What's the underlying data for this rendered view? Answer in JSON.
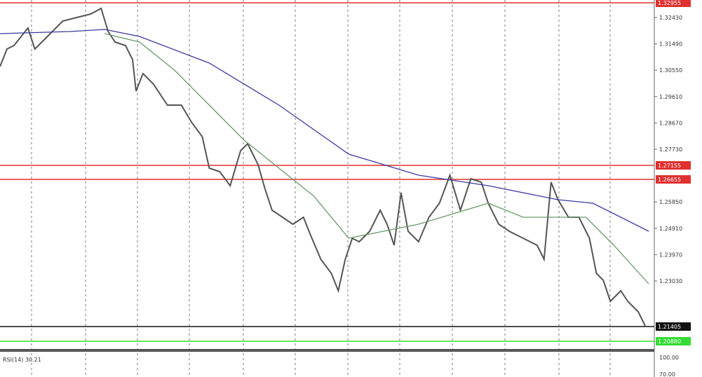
{
  "chart_data": {
    "type": "line",
    "xlabel": "",
    "ylabel": "",
    "ylim": [
      1.20605,
      1.33055
    ],
    "grid": true,
    "x": [
      0,
      2,
      4,
      8,
      10,
      14,
      18,
      22,
      26,
      29,
      31,
      33,
      36,
      38,
      39,
      41,
      44,
      48,
      52,
      55,
      58,
      60,
      63,
      66,
      69,
      71,
      74,
      76,
      78,
      81,
      84,
      87,
      89,
      92,
      95,
      97,
      99,
      101,
      103,
      106,
      109,
      111,
      113,
      115,
      117,
      120,
      123,
      126,
      129,
      132,
      135,
      138,
      140,
      143,
      146,
      150,
      154,
      156,
      158,
      160,
      163,
      166,
      169,
      171,
      173,
      175,
      178,
      180,
      183,
      185
    ],
    "series": [
      {
        "role": "price",
        "color": "#555555",
        "values": [
          1.3068,
          1.31305,
          1.3143,
          1.32055,
          1.31305,
          1.31805,
          1.32305,
          1.3243,
          1.32555,
          1.32755,
          1.3193,
          1.31555,
          1.3143,
          1.3093,
          1.29805,
          1.3043,
          1.30055,
          1.29305,
          1.29305,
          1.2868,
          1.2818,
          1.27055,
          1.2693,
          1.2643,
          1.2768,
          1.2793,
          1.2718,
          1.26305,
          1.25555,
          1.25305,
          1.25055,
          1.25305,
          1.2468,
          1.23805,
          1.23305,
          1.2268,
          1.23805,
          1.24555,
          1.2443,
          1.24805,
          1.25555,
          1.25055,
          1.24305,
          1.2618,
          1.24805,
          1.2443,
          1.25305,
          1.25805,
          1.26805,
          1.25555,
          1.2668,
          1.26555,
          1.25805,
          1.25055,
          1.24805,
          1.24555,
          1.24305,
          1.23805,
          1.26555,
          1.2593,
          1.25305,
          1.25305,
          1.24555,
          1.23305,
          1.23055,
          1.22305,
          1.2268,
          1.22305,
          1.2193,
          1.2143
        ]
      },
      {
        "role": "slow-ma",
        "color": "#3a3aa0",
        "x": [
          0,
          20,
          30,
          40,
          60,
          80,
          100,
          120,
          140,
          160,
          170,
          186
        ],
        "values": [
          1.31855,
          1.3193,
          1.32005,
          1.31755,
          1.30805,
          1.29305,
          1.27555,
          1.26805,
          1.2643,
          1.2593,
          1.25805,
          1.24805
        ]
      },
      {
        "role": "fast-ma",
        "color": "#6a9a6a",
        "x": [
          30,
          40,
          50,
          60,
          70,
          80,
          90,
          100,
          110,
          120,
          130,
          140,
          150,
          160,
          168,
          176,
          186
        ],
        "values": [
          1.31855,
          1.31555,
          1.30555,
          1.29305,
          1.28055,
          1.27055,
          1.26055,
          1.24555,
          1.24805,
          1.25055,
          1.2543,
          1.25805,
          1.25305,
          1.25305,
          1.25305,
          1.24305,
          1.2293
        ]
      }
    ],
    "y_ticks": [
      "1.32430",
      "1.31490",
      "1.30550",
      "1.29610",
      "1.28670",
      "1.27730",
      "1.25850",
      "1.24910",
      "1.23970",
      "1.23030"
    ],
    "horizontal_levels": [
      {
        "value": 1.32955,
        "label": "1.32955",
        "color": "#e03030"
      },
      {
        "value": 1.27155,
        "label": "1.27155",
        "color": "#e03030"
      },
      {
        "value": 1.26655,
        "label": "1.26655",
        "color": "#e03030"
      },
      {
        "value": 1.21405,
        "label": "1.21405",
        "color": "#111111"
      },
      {
        "value": 1.2088,
        "label": "1.20880",
        "color": "#33dd33"
      }
    ],
    "indicator": {
      "label": "RSI(14) 30.21",
      "ticks": [
        "100.00",
        "70.00"
      ]
    }
  }
}
